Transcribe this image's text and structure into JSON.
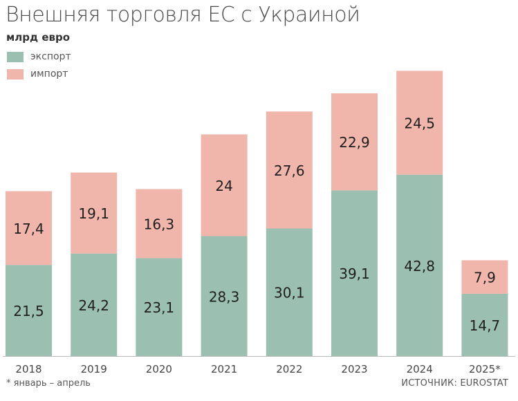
{
  "title": "Внешняя торговля ЕС с Украиной",
  "subtitle": "млрд евро",
  "footnote": "* январь – апрель",
  "source": "ИСТОЧНИК: EUROSTAT",
  "colors": {
    "export": "#9bbfb0",
    "import": "#f1b6ab"
  },
  "chart_data": {
    "type": "bar",
    "stacked": true,
    "categories": [
      "2018",
      "2019",
      "2020",
      "2021",
      "2022",
      "2023",
      "2024",
      "2025*"
    ],
    "series": [
      {
        "name": "экспорт",
        "values": [
          21.5,
          24.2,
          23.1,
          28.3,
          30.1,
          39.1,
          42.8,
          14.7
        ],
        "labels": [
          "21,5",
          "24,2",
          "23,1",
          "28,3",
          "30,1",
          "39,1",
          "42,8",
          "14,7"
        ]
      },
      {
        "name": "импорт",
        "values": [
          17.4,
          19.1,
          16.3,
          24,
          27.6,
          22.9,
          24.5,
          7.9
        ],
        "labels": [
          "17,4",
          "19,1",
          "16,3",
          "24",
          "27,6",
          "22,9",
          "24,5",
          "7,9"
        ]
      }
    ],
    "legend": "top-left",
    "grid": false
  }
}
